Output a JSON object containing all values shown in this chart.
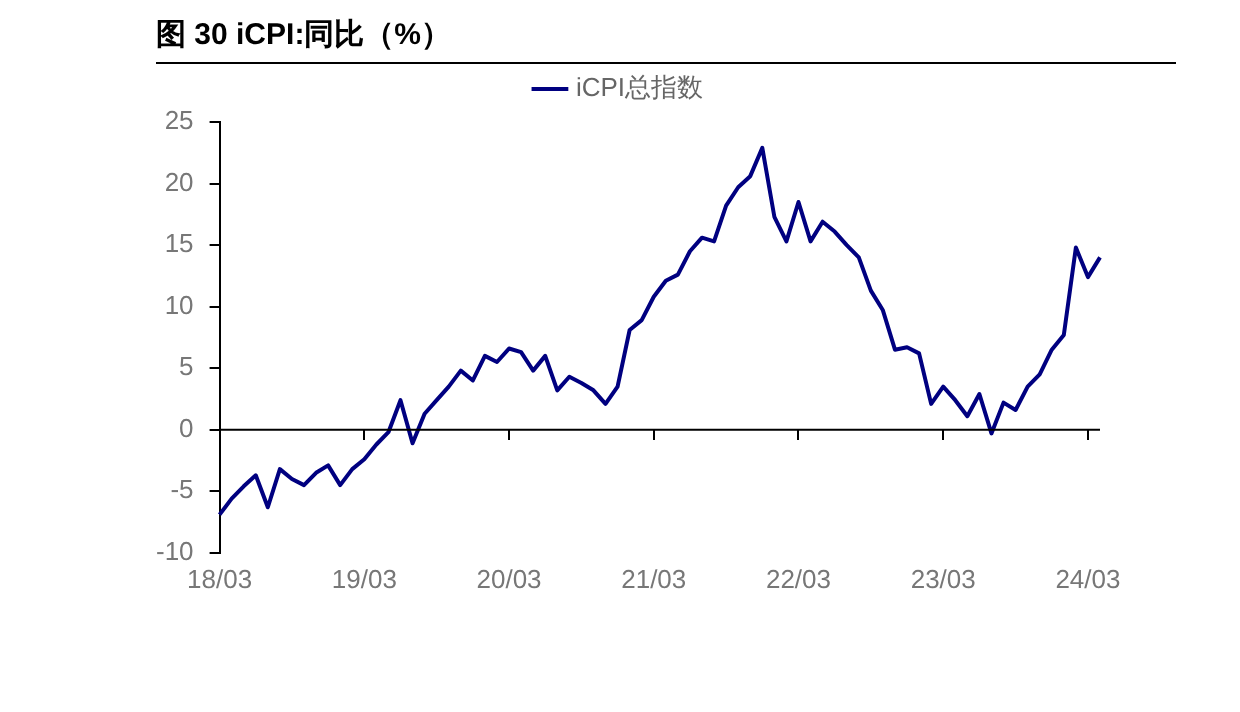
{
  "chart_data": {
    "type": "line",
    "title": "图 30 iCPI:同比（%）",
    "categories": [
      "18/03",
      null,
      null,
      null,
      null,
      null,
      null,
      null,
      null,
      null,
      null,
      null,
      "19/03",
      null,
      null,
      null,
      null,
      null,
      null,
      null,
      null,
      null,
      null,
      null,
      "20/03",
      null,
      null,
      null,
      null,
      null,
      null,
      null,
      null,
      null,
      null,
      null,
      "21/03",
      null,
      null,
      null,
      null,
      null,
      null,
      null,
      null,
      null,
      null,
      null,
      "22/03",
      null,
      null,
      null,
      null,
      null,
      null,
      null,
      null,
      null,
      null,
      null,
      "23/03",
      null,
      null,
      null,
      null,
      null,
      null,
      null,
      null,
      null,
      null,
      null,
      "24/03",
      null
    ],
    "series": [
      {
        "name": "iCPI总指数",
        "color": "#000080",
        "values": [
          -6.9,
          -5.6,
          -4.6,
          -3.7,
          -6.3,
          -3.2,
          -4.0,
          -4.5,
          -3.5,
          -2.9,
          -4.5,
          -3.2,
          -2.4,
          -1.2,
          -0.2,
          2.4,
          -1.1,
          1.3,
          2.4,
          3.5,
          4.8,
          4.0,
          6.0,
          5.5,
          6.6,
          6.3,
          4.8,
          6.0,
          3.2,
          4.3,
          3.8,
          3.2,
          2.1,
          3.5,
          8.1,
          8.9,
          10.8,
          12.1,
          12.6,
          14.5,
          15.6,
          15.3,
          18.2,
          19.7,
          20.6,
          22.9,
          17.3,
          15.3,
          18.5,
          15.3,
          16.9,
          16.1,
          15.0,
          14.0,
          11.3,
          9.7,
          6.5,
          6.7,
          6.2,
          2.1,
          3.5,
          2.4,
          1.1,
          2.9,
          -0.3,
          2.2,
          1.6,
          3.5,
          4.5,
          6.5,
          7.7,
          14.8,
          12.4,
          14.0
        ]
      }
    ],
    "ylim": [
      -10,
      25
    ],
    "yticks": [
      -10,
      -5,
      0,
      5,
      10,
      15,
      20,
      25
    ],
    "ref_lines": [
      {
        "axis": "y",
        "value": 0,
        "color": "#000000",
        "line_style": "solid"
      }
    ],
    "grid": false,
    "legend": "top",
    "marker": "none",
    "line_style": "solid"
  }
}
